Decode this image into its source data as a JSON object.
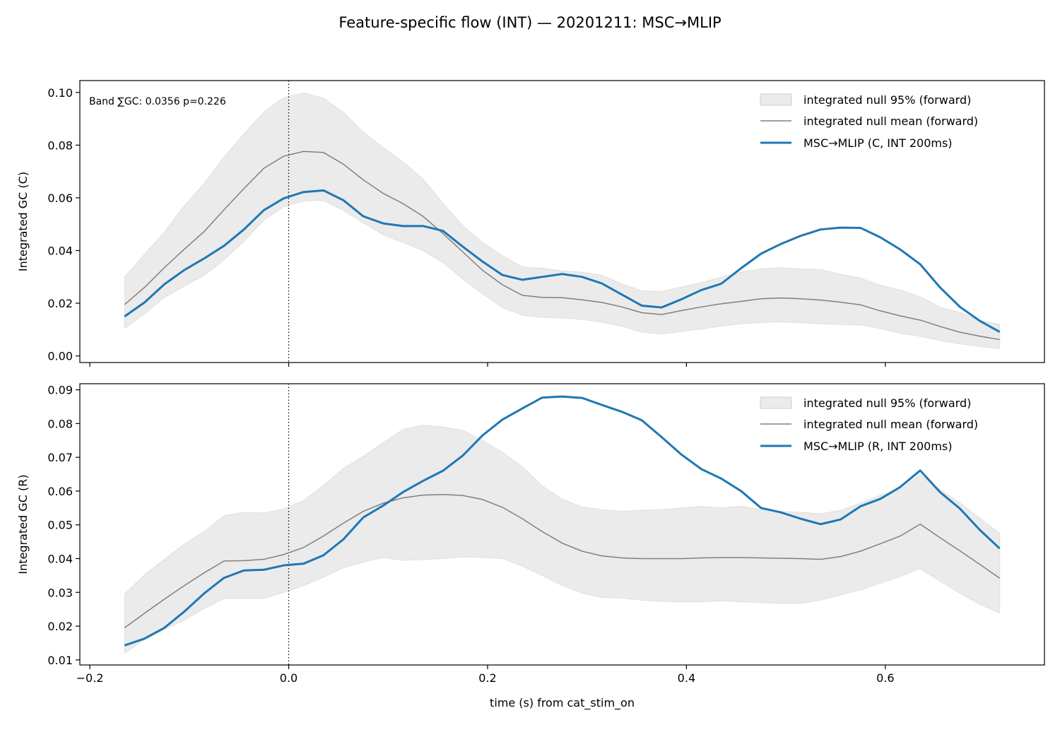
{
  "figure": {
    "title": "Feature-specific flow (INT) — 20201211: MSC→MLIP"
  },
  "colors": {
    "series_line": "#1f77b4",
    "null_mean": "#808080",
    "null_band": "#e0e0e0",
    "event_line": "#000000"
  },
  "chart_data": [
    {
      "type": "line",
      "xlabel": "",
      "ylabel": "Integrated GC (C)",
      "xlim": [
        -0.21,
        0.76
      ],
      "ylim": [
        -0.0025,
        0.1045
      ],
      "xticks": [
        -0.2,
        0.0,
        0.2,
        0.4,
        0.6
      ],
      "xtick_labels": [
        "",
        "",
        "",
        "",
        ""
      ],
      "yticks": [
        0.0,
        0.02,
        0.04,
        0.06,
        0.08,
        0.1
      ],
      "ytick_labels": [
        "0.00",
        "0.02",
        "0.04",
        "0.06",
        "0.08",
        "0.10"
      ],
      "vline_x": 0.0,
      "annotation": "Band ∑GC: 0.0356  p=0.226",
      "legend_position": "upper right",
      "legend": [
        "integrated null 95% (forward)",
        "integrated null mean (forward)",
        "MSC→MLIP (C, INT 200ms)"
      ],
      "x": [
        -0.165,
        -0.145,
        -0.125,
        -0.105,
        -0.085,
        -0.065,
        -0.045,
        -0.025,
        -0.005,
        0.015,
        0.035,
        0.055,
        0.075,
        0.095,
        0.115,
        0.135,
        0.155,
        0.175,
        0.195,
        0.215,
        0.235,
        0.255,
        0.275,
        0.295,
        0.315,
        0.335,
        0.355,
        0.375,
        0.395,
        0.415,
        0.435,
        0.455,
        0.475,
        0.495,
        0.515,
        0.535,
        0.555,
        0.575,
        0.595,
        0.615,
        0.635,
        0.655,
        0.675,
        0.695,
        0.715
      ],
      "series": [
        {
          "name": "MSC→MLIP (C, INT 200ms)",
          "role": "line",
          "values": [
            0.015,
            0.0203,
            0.0272,
            0.0326,
            0.037,
            0.0418,
            0.048,
            0.0553,
            0.0598,
            0.0622,
            0.0628,
            0.0591,
            0.053,
            0.0503,
            0.0493,
            0.0493,
            0.0475,
            0.0415,
            0.0358,
            0.0307,
            0.0289,
            0.03,
            0.0311,
            0.03,
            0.0275,
            0.0233,
            0.0191,
            0.0184,
            0.0215,
            0.025,
            0.0274,
            0.0333,
            0.0388,
            0.0425,
            0.0456,
            0.048,
            0.0487,
            0.0486,
            0.045,
            0.0404,
            0.0348,
            0.026,
            0.0186,
            0.0133,
            0.0091
          ]
        },
        {
          "name": "integrated null mean (forward)",
          "role": "mean",
          "values": [
            0.0195,
            0.026,
            0.0335,
            0.0405,
            0.0472,
            0.0555,
            0.0635,
            0.0712,
            0.0758,
            0.0776,
            0.0772,
            0.0728,
            0.0668,
            0.0617,
            0.0578,
            0.053,
            0.0465,
            0.0395,
            0.0325,
            0.027,
            0.023,
            0.0222,
            0.0221,
            0.0213,
            0.0203,
            0.0186,
            0.0164,
            0.0157,
            0.0172,
            0.0186,
            0.0198,
            0.0207,
            0.0217,
            0.022,
            0.0217,
            0.0212,
            0.0204,
            0.0194,
            0.0171,
            0.0152,
            0.0136,
            0.0112,
            0.009,
            0.0075,
            0.0062
          ]
        },
        {
          "name": "integrated null 95% (forward)",
          "role": "band",
          "lower": [
            0.0105,
            0.016,
            0.0222,
            0.0265,
            0.0305,
            0.0365,
            0.0435,
            0.0515,
            0.0566,
            0.0588,
            0.059,
            0.0552,
            0.0505,
            0.046,
            0.043,
            0.04,
            0.0355,
            0.0292,
            0.0236,
            0.0183,
            0.0155,
            0.0146,
            0.0144,
            0.0139,
            0.0128,
            0.0113,
            0.009,
            0.0083,
            0.0093,
            0.0102,
            0.0113,
            0.0122,
            0.0127,
            0.0129,
            0.0126,
            0.0122,
            0.0119,
            0.0118,
            0.0104,
            0.0086,
            0.0075,
            0.0058,
            0.0046,
            0.0036,
            0.0028
          ],
          "upper": [
            0.03,
            0.0385,
            0.047,
            0.057,
            0.0655,
            0.0755,
            0.0842,
            0.0925,
            0.098,
            0.0998,
            0.0978,
            0.0925,
            0.085,
            0.079,
            0.0736,
            0.0672,
            0.058,
            0.0495,
            0.043,
            0.038,
            0.0338,
            0.0333,
            0.0323,
            0.0318,
            0.0306,
            0.0273,
            0.0248,
            0.0244,
            0.0262,
            0.0278,
            0.03,
            0.0318,
            0.033,
            0.0335,
            0.033,
            0.0328,
            0.031,
            0.0295,
            0.0268,
            0.025,
            0.0225,
            0.0185,
            0.0165,
            0.0135,
            0.012
          ]
        }
      ]
    },
    {
      "type": "line",
      "xlabel": "time (s) from cat_stim_on",
      "ylabel": "Integrated GC (R)",
      "xlim": [
        -0.21,
        0.76
      ],
      "ylim": [
        0.0085,
        0.0918
      ],
      "xticks": [
        -0.2,
        0.0,
        0.2,
        0.4,
        0.6
      ],
      "xtick_labels": [
        "−0.2",
        "0.0",
        "0.2",
        "0.4",
        "0.6"
      ],
      "yticks": [
        0.01,
        0.02,
        0.03,
        0.04,
        0.05,
        0.06,
        0.07,
        0.08,
        0.09
      ],
      "ytick_labels": [
        "0.01",
        "0.02",
        "0.03",
        "0.04",
        "0.05",
        "0.06",
        "0.07",
        "0.08",
        "0.09"
      ],
      "vline_x": 0.0,
      "legend_position": "upper right",
      "legend": [
        "integrated null 95% (forward)",
        "integrated null mean (forward)",
        "MSC→MLIP (R, INT 200ms)"
      ],
      "x": [
        -0.165,
        -0.145,
        -0.125,
        -0.105,
        -0.085,
        -0.065,
        -0.045,
        -0.025,
        -0.005,
        0.015,
        0.035,
        0.055,
        0.075,
        0.095,
        0.115,
        0.135,
        0.155,
        0.175,
        0.195,
        0.215,
        0.235,
        0.255,
        0.275,
        0.295,
        0.315,
        0.335,
        0.355,
        0.375,
        0.395,
        0.415,
        0.435,
        0.455,
        0.475,
        0.495,
        0.515,
        0.535,
        0.555,
        0.575,
        0.595,
        0.615,
        0.635,
        0.655,
        0.675,
        0.695,
        0.715
      ],
      "series": [
        {
          "name": "MSC→MLIP (R, INT 200ms)",
          "role": "line",
          "values": [
            0.0143,
            0.0163,
            0.0195,
            0.0243,
            0.0297,
            0.0343,
            0.0365,
            0.0367,
            0.038,
            0.0385,
            0.041,
            0.0457,
            0.0522,
            0.0557,
            0.0597,
            0.063,
            0.066,
            0.0705,
            0.0765,
            0.0812,
            0.0845,
            0.0877,
            0.088,
            0.0876,
            0.0855,
            0.0835,
            0.081,
            0.076,
            0.0708,
            0.0665,
            0.0637,
            0.06,
            0.055,
            0.0537,
            0.0518,
            0.0502,
            0.0516,
            0.0555,
            0.0577,
            0.0612,
            0.0661,
            0.0597,
            0.0548,
            0.0485,
            0.043
          ]
        },
        {
          "name": "integrated null mean (forward)",
          "role": "mean",
          "values": [
            0.0195,
            0.0238,
            0.028,
            0.032,
            0.0358,
            0.0393,
            0.0394,
            0.0398,
            0.0412,
            0.0433,
            0.0467,
            0.0505,
            0.054,
            0.0564,
            0.058,
            0.0588,
            0.059,
            0.0587,
            0.0575,
            0.0552,
            0.0518,
            0.048,
            0.0446,
            0.0422,
            0.0408,
            0.0402,
            0.04,
            0.04,
            0.04,
            0.0402,
            0.0403,
            0.0403,
            0.0402,
            0.0401,
            0.04,
            0.0398,
            0.0406,
            0.0422,
            0.0444,
            0.0467,
            0.0502,
            0.0462,
            0.0423,
            0.0383,
            0.0342
          ]
        },
        {
          "name": "integrated null 95% (forward)",
          "role": "band",
          "lower": [
            0.012,
            0.016,
            0.019,
            0.0218,
            0.0252,
            0.0282,
            0.0282,
            0.0282,
            0.03,
            0.032,
            0.0345,
            0.0373,
            0.039,
            0.0403,
            0.0395,
            0.0397,
            0.04,
            0.0405,
            0.0403,
            0.04,
            0.0378,
            0.035,
            0.032,
            0.0298,
            0.0285,
            0.0283,
            0.0277,
            0.0273,
            0.0272,
            0.0272,
            0.0275,
            0.0272,
            0.027,
            0.0267,
            0.0267,
            0.0277,
            0.0293,
            0.0307,
            0.0327,
            0.0347,
            0.037,
            0.0333,
            0.0297,
            0.0265,
            0.0238
          ],
          "upper": [
            0.0295,
            0.0352,
            0.0398,
            0.0443,
            0.048,
            0.0527,
            0.0537,
            0.0535,
            0.0547,
            0.0572,
            0.0617,
            0.0667,
            0.0703,
            0.0743,
            0.0783,
            0.0795,
            0.079,
            0.078,
            0.075,
            0.0715,
            0.0672,
            0.0615,
            0.0576,
            0.0553,
            0.0545,
            0.054,
            0.0543,
            0.0545,
            0.055,
            0.0555,
            0.055,
            0.0555,
            0.0545,
            0.054,
            0.0537,
            0.0533,
            0.0543,
            0.0565,
            0.0588,
            0.0605,
            0.0648,
            0.0605,
            0.0565,
            0.052,
            0.0475
          ]
        }
      ]
    }
  ]
}
